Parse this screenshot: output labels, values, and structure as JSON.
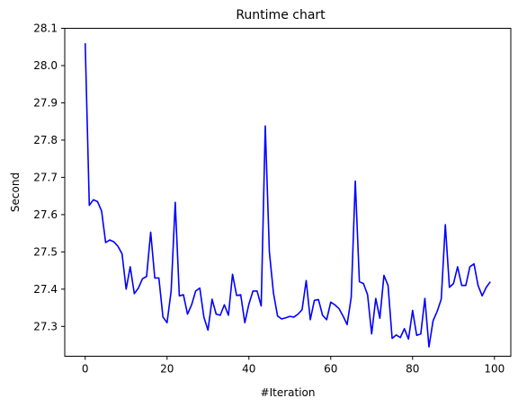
{
  "chart_data": {
    "type": "line",
    "title": "Runtime chart",
    "xlabel": "#Iteration",
    "ylabel": "Second",
    "xlim": [
      -5,
      104
    ],
    "ylim": [
      27.22,
      28.1
    ],
    "xticks": [
      0,
      20,
      40,
      60,
      80,
      100
    ],
    "xtick_labels": [
      "0",
      "20",
      "40",
      "60",
      "80",
      "100"
    ],
    "yticks": [
      27.3,
      27.4,
      27.5,
      27.6,
      27.7,
      27.8,
      27.9,
      28.0,
      28.1
    ],
    "ytick_labels": [
      "27.3",
      "27.4",
      "27.5",
      "27.6",
      "27.7",
      "27.8",
      "27.9",
      "28.0",
      "28.1"
    ],
    "grid": false,
    "series": [
      {
        "color": "#0000ff",
        "x": [
          0,
          1,
          2,
          3,
          4,
          5,
          6,
          7,
          8,
          9,
          10,
          11,
          12,
          13,
          14,
          15,
          16,
          17,
          18,
          19,
          20,
          21,
          22,
          23,
          24,
          25,
          26,
          27,
          28,
          29,
          30,
          31,
          32,
          33,
          34,
          35,
          36,
          37,
          38,
          39,
          40,
          41,
          42,
          43,
          44,
          45,
          46,
          47,
          48,
          49,
          50,
          51,
          52,
          53,
          54,
          55,
          56,
          57,
          58,
          59,
          60,
          61,
          62,
          63,
          64,
          65,
          66,
          67,
          68,
          69,
          70,
          71,
          72,
          73,
          74,
          75,
          76,
          77,
          78,
          79,
          80,
          81,
          82,
          83,
          84,
          85,
          86,
          87,
          88,
          89,
          90,
          91,
          92,
          93,
          94,
          95,
          96,
          97,
          98,
          99
        ],
        "values": [
          28.06,
          27.625,
          27.64,
          27.635,
          27.61,
          27.525,
          27.532,
          27.527,
          27.515,
          27.495,
          27.4,
          27.46,
          27.388,
          27.403,
          27.428,
          27.434,
          27.553,
          27.43,
          27.43,
          27.325,
          27.31,
          27.395,
          27.633,
          27.382,
          27.385,
          27.333,
          27.358,
          27.395,
          27.403,
          27.325,
          27.29,
          27.373,
          27.333,
          27.33,
          27.358,
          27.33,
          27.44,
          27.383,
          27.385,
          27.31,
          27.36,
          27.395,
          27.395,
          27.355,
          27.838,
          27.5,
          27.39,
          27.328,
          27.32,
          27.323,
          27.327,
          27.325,
          27.333,
          27.345,
          27.423,
          27.318,
          27.37,
          27.372,
          27.33,
          27.318,
          27.365,
          27.358,
          27.348,
          27.328,
          27.305,
          27.378,
          27.69,
          27.42,
          27.415,
          27.385,
          27.28,
          27.375,
          27.322,
          27.437,
          27.41,
          27.268,
          27.277,
          27.27,
          27.294,
          27.266,
          27.343,
          27.276,
          27.28,
          27.375,
          27.245,
          27.315,
          27.34,
          27.373,
          27.573,
          27.405,
          27.415,
          27.46,
          27.41,
          27.41,
          27.46,
          27.468,
          27.41,
          27.382,
          27.405,
          27.42
        ]
      }
    ]
  }
}
